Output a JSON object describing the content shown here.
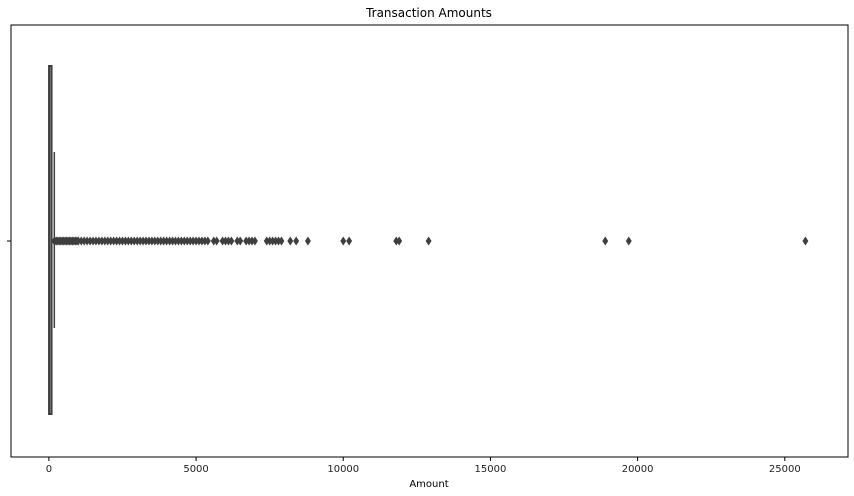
{
  "chart_data": {
    "type": "box",
    "orientation": "horizontal",
    "title": "Transaction Amounts",
    "xlabel": "Amount",
    "ylabel": "",
    "xlim": [
      -1287,
      27147
    ],
    "xticks": [
      0,
      5000,
      10000,
      15000,
      20000,
      25000
    ],
    "xtick_labels": [
      "0",
      "5000",
      "10000",
      "15000",
      "20000",
      "25000"
    ],
    "box": {
      "min": 0,
      "q1": 5.6,
      "median": 22,
      "q3": 77.2,
      "whisker_high": 184.5
    },
    "outliers": [
      185,
      200,
      250,
      300,
      350,
      400,
      450,
      500,
      550,
      600,
      650,
      700,
      750,
      800,
      850,
      900,
      950,
      1000,
      1100,
      1200,
      1300,
      1400,
      1500,
      1600,
      1700,
      1800,
      1900,
      2000,
      2100,
      2200,
      2300,
      2400,
      2500,
      2600,
      2700,
      2800,
      2900,
      3000,
      3100,
      3200,
      3300,
      3400,
      3500,
      3600,
      3700,
      3800,
      3900,
      4000,
      4100,
      4200,
      4300,
      4400,
      4500,
      4600,
      4700,
      4800,
      4900,
      5000,
      5100,
      5200,
      5300,
      5400,
      5600,
      5700,
      5900,
      6000,
      6100,
      6200,
      6400,
      6500,
      6700,
      6800,
      6900,
      7000,
      7400,
      7500,
      7600,
      7700,
      7800,
      7900,
      8200,
      8400,
      8800,
      10000,
      10200,
      11800,
      11900,
      12900,
      18900,
      19700,
      25700
    ],
    "colors": {
      "box_line": "#3f3f3f",
      "box_fill": "#ffffff",
      "axis": "#000000"
    }
  }
}
